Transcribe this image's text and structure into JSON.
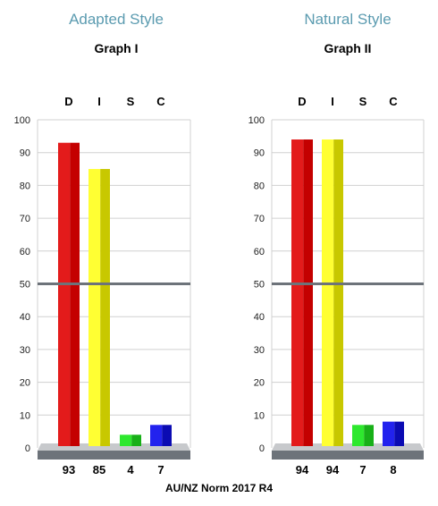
{
  "norm_label": "AU/NZ Norm 2017 R4",
  "colors": {
    "D": [
      "#e31b1b",
      "#c40000"
    ],
    "I": [
      "#ffff33",
      "#c8c800"
    ],
    "S": [
      "#2ee82e",
      "#18b018"
    ],
    "C": [
      "#2222ee",
      "#0b0bb3"
    ],
    "midline": "#6d737a",
    "floor": "#6d737a",
    "grid": "#d0d0d0",
    "style_title": "#5b9bb0"
  },
  "chart_data": [
    {
      "type": "bar",
      "style_title": "Adapted Style",
      "title": "Graph I",
      "categories": [
        "D",
        "I",
        "S",
        "C"
      ],
      "values": [
        93,
        85,
        4,
        7
      ],
      "value_labels": [
        "93",
        "85",
        "4",
        "7"
      ],
      "y_ticks": [
        "0",
        "10",
        "20",
        "30",
        "40",
        "50",
        "60",
        "70",
        "80",
        "90",
        "100"
      ],
      "ylim": [
        0,
        100
      ],
      "midline": 50,
      "grid": true
    },
    {
      "type": "bar",
      "style_title": "Natural Style",
      "title": "Graph II",
      "categories": [
        "D",
        "I",
        "S",
        "C"
      ],
      "values": [
        94,
        94,
        7,
        8
      ],
      "value_labels": [
        "94",
        "94",
        "7",
        "8"
      ],
      "y_ticks": [
        "0",
        "10",
        "20",
        "30",
        "40",
        "50",
        "60",
        "70",
        "80",
        "90",
        "100"
      ],
      "ylim": [
        0,
        100
      ],
      "midline": 50,
      "grid": true
    }
  ]
}
